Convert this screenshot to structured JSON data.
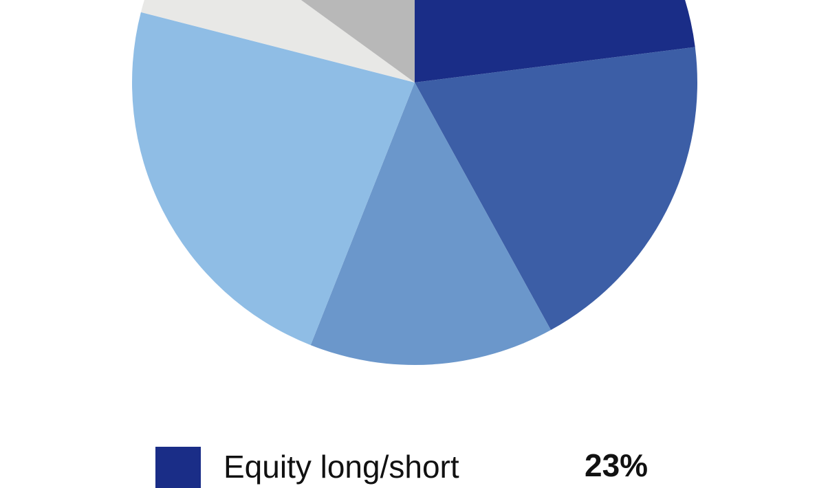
{
  "chart_data": {
    "type": "pie",
    "start_angle_deg": 0,
    "direction": "clockwise",
    "slices": [
      {
        "name": "Equity long/short",
        "value": 23,
        "color": "#1a2d87"
      },
      {
        "value": 19,
        "color": "#3c5ea6"
      },
      {
        "value": 14,
        "color": "#6b97cb"
      },
      {
        "value": 23,
        "color": "#8fbde5"
      },
      {
        "value": 6,
        "color": "#e8e8e6"
      },
      {
        "value": 15,
        "color": "#b8b8b8"
      }
    ],
    "legend": [
      {
        "label": "Equity long/short",
        "value_label": "23%",
        "color": "#1a2d87"
      }
    ]
  }
}
